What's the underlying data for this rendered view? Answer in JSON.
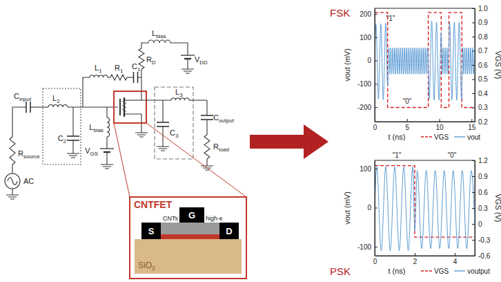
{
  "diagram": {
    "labels": {
      "c_input": {
        "sym": "C",
        "sub": "input"
      },
      "l_2": {
        "sym": "L",
        "sub": "2"
      },
      "c_2": {
        "sym": "C",
        "sub": "2"
      },
      "r_source": {
        "sym": "R",
        "sub": "source"
      },
      "ac": "AC",
      "l_1": {
        "sym": "L",
        "sub": "1"
      },
      "r_1": {
        "sym": "R",
        "sub": "1"
      },
      "c_1": {
        "sym": "C",
        "sub": "1"
      },
      "r_d": {
        "sym": "R",
        "sub": "D"
      },
      "l_bias_top": {
        "sym": "L",
        "sub": "bias"
      },
      "v_dd": {
        "sym": "V",
        "sub": "DD"
      },
      "l_bias_gate": {
        "sym": "L",
        "sub": "bias"
      },
      "v_gs": {
        "sym": "V",
        "sub": "GS"
      },
      "l_3": {
        "sym": "L",
        "sub": "3"
      },
      "c_3": {
        "sym": "C",
        "sub": "3"
      },
      "c_output": {
        "sym": "C",
        "sub": "output"
      },
      "r_load": {
        "sym": "R",
        "sub": "load"
      }
    },
    "inset": {
      "title": "CNTFET",
      "gate": "G",
      "source": "S",
      "drain": "D",
      "cnts": "CNTs",
      "dielectric": "high-κ",
      "substrate": {
        "sym": "SiO",
        "sub": "2"
      }
    }
  },
  "chart_data": [
    {
      "type": "line",
      "title": "FSK",
      "xlabel": "t (ns)",
      "ylabel": "vout (mV)",
      "y2label": "VGS (V)",
      "xlim": [
        0,
        15.5
      ],
      "xticks": [
        0,
        5,
        10,
        15
      ],
      "ylim": [
        -262,
        224
      ],
      "yticks": [
        -200,
        -100,
        0,
        100,
        200
      ],
      "y2lim": [
        0.2,
        1.0
      ],
      "y2ticks": [
        0.2,
        0.3,
        0.4,
        0.5,
        0.6,
        0.7,
        0.8,
        0.9,
        {
          "value": 1,
          "label": "1.0"
        }
      ],
      "legend": "bottom",
      "annotations": [
        "\"1\"",
        "\"0\""
      ],
      "series": [
        {
          "name": "VGS",
          "color": "#d7191c",
          "line_style": "dashed",
          "axis": "y2",
          "x": [
            0,
            2,
            2,
            8.3,
            8.3,
            10.3,
            10.3,
            11.5,
            11.5,
            13.5,
            13.5,
            15.5
          ],
          "values": [
            0.97,
            0.97,
            0.3,
            0.3,
            0.97,
            0.97,
            0.3,
            0.3,
            0.97,
            0.97,
            0.3,
            0.3
          ]
        },
        {
          "name": "vout",
          "color": "#5b9bd5",
          "line_style": "solid",
          "x": [
            0,
            0.2,
            0.575,
            0.95,
            1.325,
            1.7,
            2.0,
            2.2,
            2.35,
            2.5,
            2.65,
            2.8,
            2.95,
            3.1,
            3.25,
            3.4,
            3.55,
            3.7,
            3.85,
            4.0,
            4.15,
            4.3,
            4.45,
            4.6,
            4.75,
            4.9,
            5.05,
            5.2,
            5.35,
            5.5,
            5.65,
            5.8,
            5.95,
            6.1,
            6.25,
            6.4,
            6.55,
            6.7,
            6.85,
            7.0,
            7.15,
            7.3,
            7.45,
            7.6,
            7.75,
            7.9,
            8.05,
            8.2,
            8.45,
            8.825,
            9.2,
            9.575,
            9.95,
            10.3,
            10.45,
            10.6,
            10.75,
            10.9,
            11.05,
            11.2,
            11.35,
            11.6,
            11.95,
            12.325,
            12.7,
            13.075,
            13.45,
            13.65,
            13.8,
            13.95,
            14.1,
            14.25,
            14.4,
            14.55,
            14.7,
            14.85,
            15.0,
            15.15,
            15.3,
            15.45
          ],
          "values": [
            0,
            155,
            -165,
            158,
            -168,
            160,
            -110,
            55,
            -58,
            55,
            -58,
            55,
            -58,
            55,
            -58,
            55,
            -58,
            55,
            -58,
            55,
            -58,
            55,
            -58,
            55,
            -58,
            55,
            -58,
            55,
            -58,
            55,
            -58,
            55,
            -58,
            55,
            -58,
            55,
            -58,
            55,
            -58,
            55,
            -58,
            55,
            -58,
            55,
            -58,
            55,
            -58,
            55,
            -165,
            170,
            -170,
            165,
            -170,
            120,
            -58,
            55,
            -58,
            55,
            -58,
            55,
            -58,
            165,
            -170,
            165,
            -170,
            165,
            -168,
            55,
            -58,
            55,
            -58,
            55,
            -58,
            55,
            -58,
            55,
            -58,
            55,
            -58,
            55
          ]
        }
      ]
    },
    {
      "type": "line",
      "title": "PSK",
      "xlabel": "t (ns)",
      "ylabel": "vout (mV)",
      "y2label": "VGS (V)",
      "xlim": [
        0,
        5
      ],
      "xticks": [
        0,
        2,
        4
      ],
      "ylim": [
        -123,
        121
      ],
      "yticks": [
        -100,
        0,
        100
      ],
      "y2lim": [
        -0.6,
        1.2
      ],
      "y2ticks": [
        -0.6,
        -0.3,
        0,
        0.3,
        0.6,
        0.9,
        1.2
      ],
      "legend": "bottom",
      "annotations": [
        "\"1\"",
        "\"0\""
      ],
      "series": [
        {
          "name": "VGS",
          "color": "#d7191c",
          "line_style": "dashed",
          "axis": "y2",
          "x": [
            0,
            2,
            2,
            5
          ],
          "values": [
            1.1,
            1.1,
            -0.25,
            -0.25
          ]
        },
        {
          "name": "voutput",
          "color": "#5b9bd5",
          "line_style": "solid",
          "x": [
            0,
            0.1,
            0.325,
            0.55,
            0.775,
            1.0,
            1.225,
            1.45,
            1.675,
            1.9,
            2.0,
            2.125,
            2.35,
            2.575,
            2.8,
            3.025,
            3.25,
            3.475,
            3.7,
            3.925,
            4.15,
            4.375,
            4.6,
            4.825,
            5.0
          ],
          "values": [
            0,
            105,
            -110,
            105,
            -110,
            105,
            -110,
            105,
            -110,
            105,
            -60,
            95,
            -105,
            95,
            -105,
            95,
            -105,
            95,
            -105,
            95,
            -105,
            95,
            -105,
            95,
            -40
          ]
        }
      ]
    }
  ]
}
